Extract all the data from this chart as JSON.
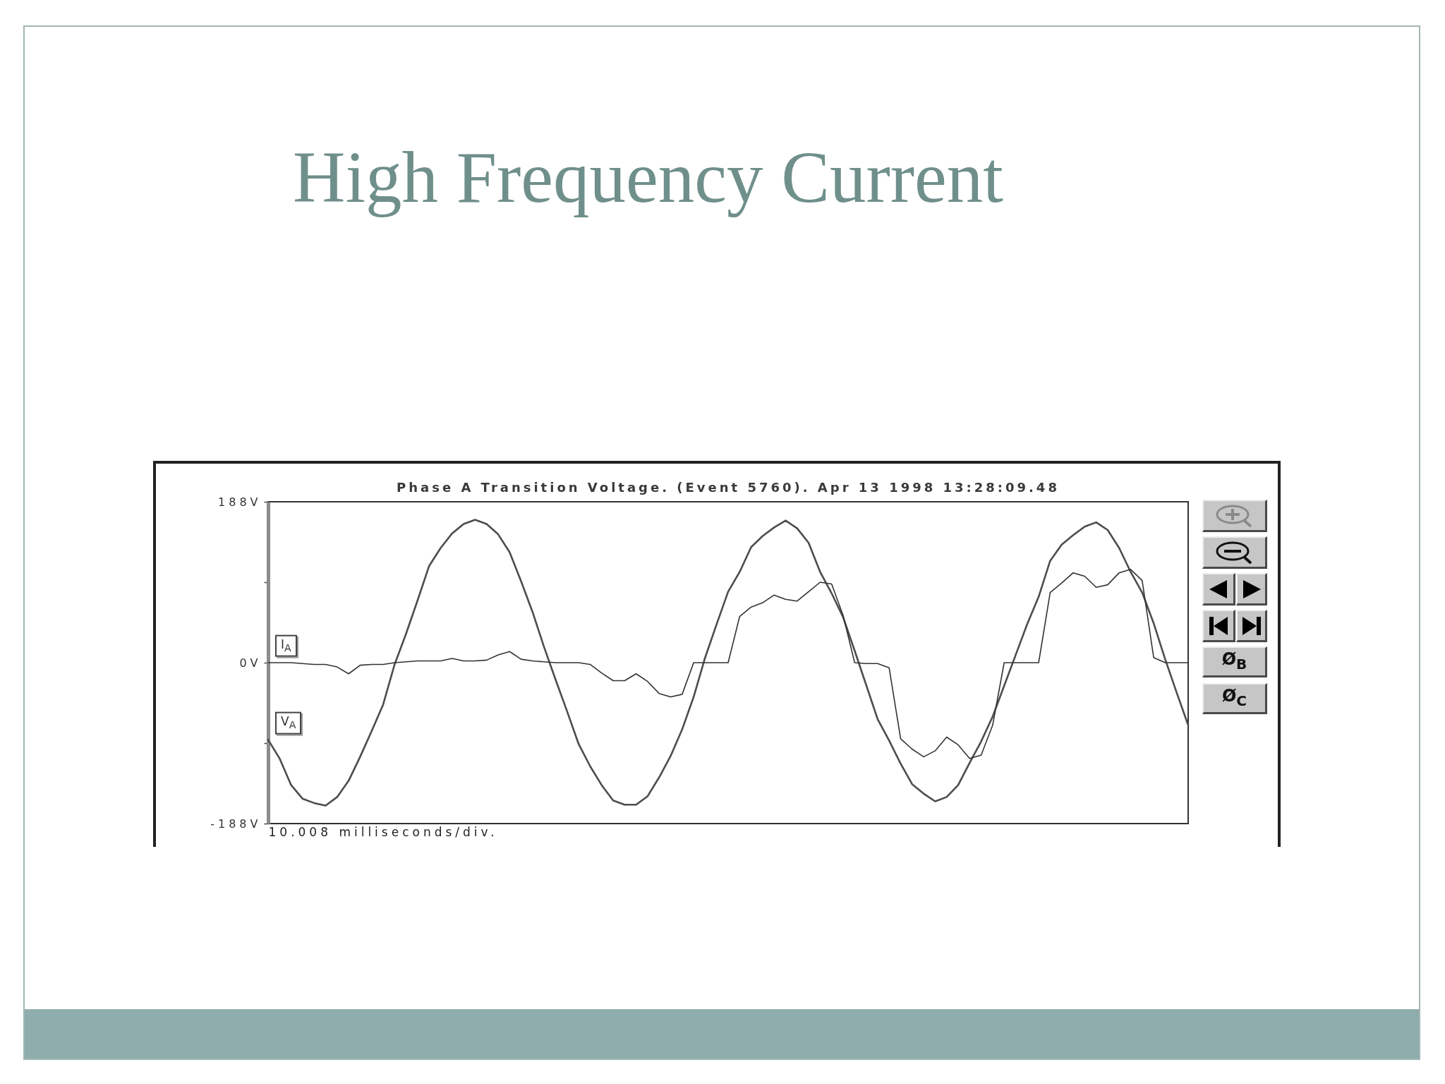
{
  "chart_data": {
    "type": "line",
    "title": "High Frequency Current",
    "subtitle": "Phase A Transition Voltage. (Event 5760). Apr 13 1998 13:28:09.48",
    "xlabel": "10.008 milliseconds/div.",
    "annotations": [
      "Ø$_{B}$",
      "Ø$_{C}$"
    ],
    "categories": [
      null,
      null,
      null,
      null,
      null,
      null,
      null,
      null,
      null,
      null,
      null,
      null,
      null,
      null,
      null,
      null,
      null,
      null,
      null,
      null,
      null,
      null,
      null,
      null,
      null,
      null,
      null,
      null,
      null,
      null,
      null,
      null,
      null,
      null,
      null,
      null,
      null,
      null,
      null,
      null,
      null,
      null,
      null,
      null,
      null,
      null,
      null,
      null,
      null,
      null,
      null,
      null,
      null,
      null,
      null,
      null,
      null,
      null,
      null,
      null,
      null,
      null,
      null,
      null,
      null,
      null,
      null,
      null,
      null,
      null,
      null,
      null,
      null,
      null,
      null,
      null,
      null,
      null,
      null,
      null,
      null
    ],
    "series": [
      {
        "name": "V$_{A}$",
        "color": "#4d4d4d",
        "values": [
          -90,
          -112,
          -143,
          -159,
          -164,
          -167,
          -157,
          -138,
          -110,
          -80,
          -49,
          -2,
          34,
          73,
          113,
          134,
          151,
          162,
          167,
          162,
          150,
          129,
          95,
          59,
          18,
          -20,
          -57,
          -95,
          -121,
          -143,
          -161,
          -166,
          -166,
          -156,
          -134,
          -109,
          -78,
          -40,
          6,
          45,
          83,
          106,
          135,
          148,
          158,
          166,
          157,
          140,
          106,
          81,
          53,
          14,
          -26,
          -66,
          -91,
          -118,
          -142,
          -153,
          -162,
          -157,
          -143,
          -117,
          -92,
          -63,
          -27,
          9,
          45,
          77,
          119,
          138,
          149,
          159,
          164,
          155,
          134,
          106,
          82,
          46,
          4,
          -35,
          -73
        ]
      },
      {
        "name": "I$_{A}$",
        "color": "#333333",
        "values": [
          0,
          0,
          0,
          -1,
          -2,
          -2,
          -5,
          -13,
          -3,
          -2,
          -2,
          0,
          1,
          2,
          2,
          2,
          5,
          2,
          2,
          3,
          9,
          13,
          4,
          2,
          1,
          0,
          0,
          0,
          -2,
          -12,
          -21,
          -21,
          -13,
          -22,
          -36,
          -40,
          -37,
          0,
          0,
          0,
          0,
          54,
          65,
          70,
          79,
          74,
          72,
          83,
          94,
          92,
          55,
          0,
          -1,
          -1,
          -6,
          -89,
          -101,
          -110,
          -103,
          -87,
          -96,
          -112,
          -108,
          -73,
          0,
          0,
          0,
          0,
          82,
          93,
          105,
          101,
          88,
          91,
          105,
          109,
          96,
          6,
          0,
          0,
          0
        ]
      }
    ],
    "ylim": [
      -188,
      188
    ],
    "yticks": [
      {
        "value": 188,
        "label": "188V"
      },
      {
        "value": 94,
        "label": null
      },
      {
        "value": 0,
        "label": "0V"
      },
      {
        "value": -94,
        "label": null
      },
      {
        "value": -188,
        "label": "-188V"
      }
    ],
    "tick_labels": "y",
    "line_style": "solid"
  }
}
